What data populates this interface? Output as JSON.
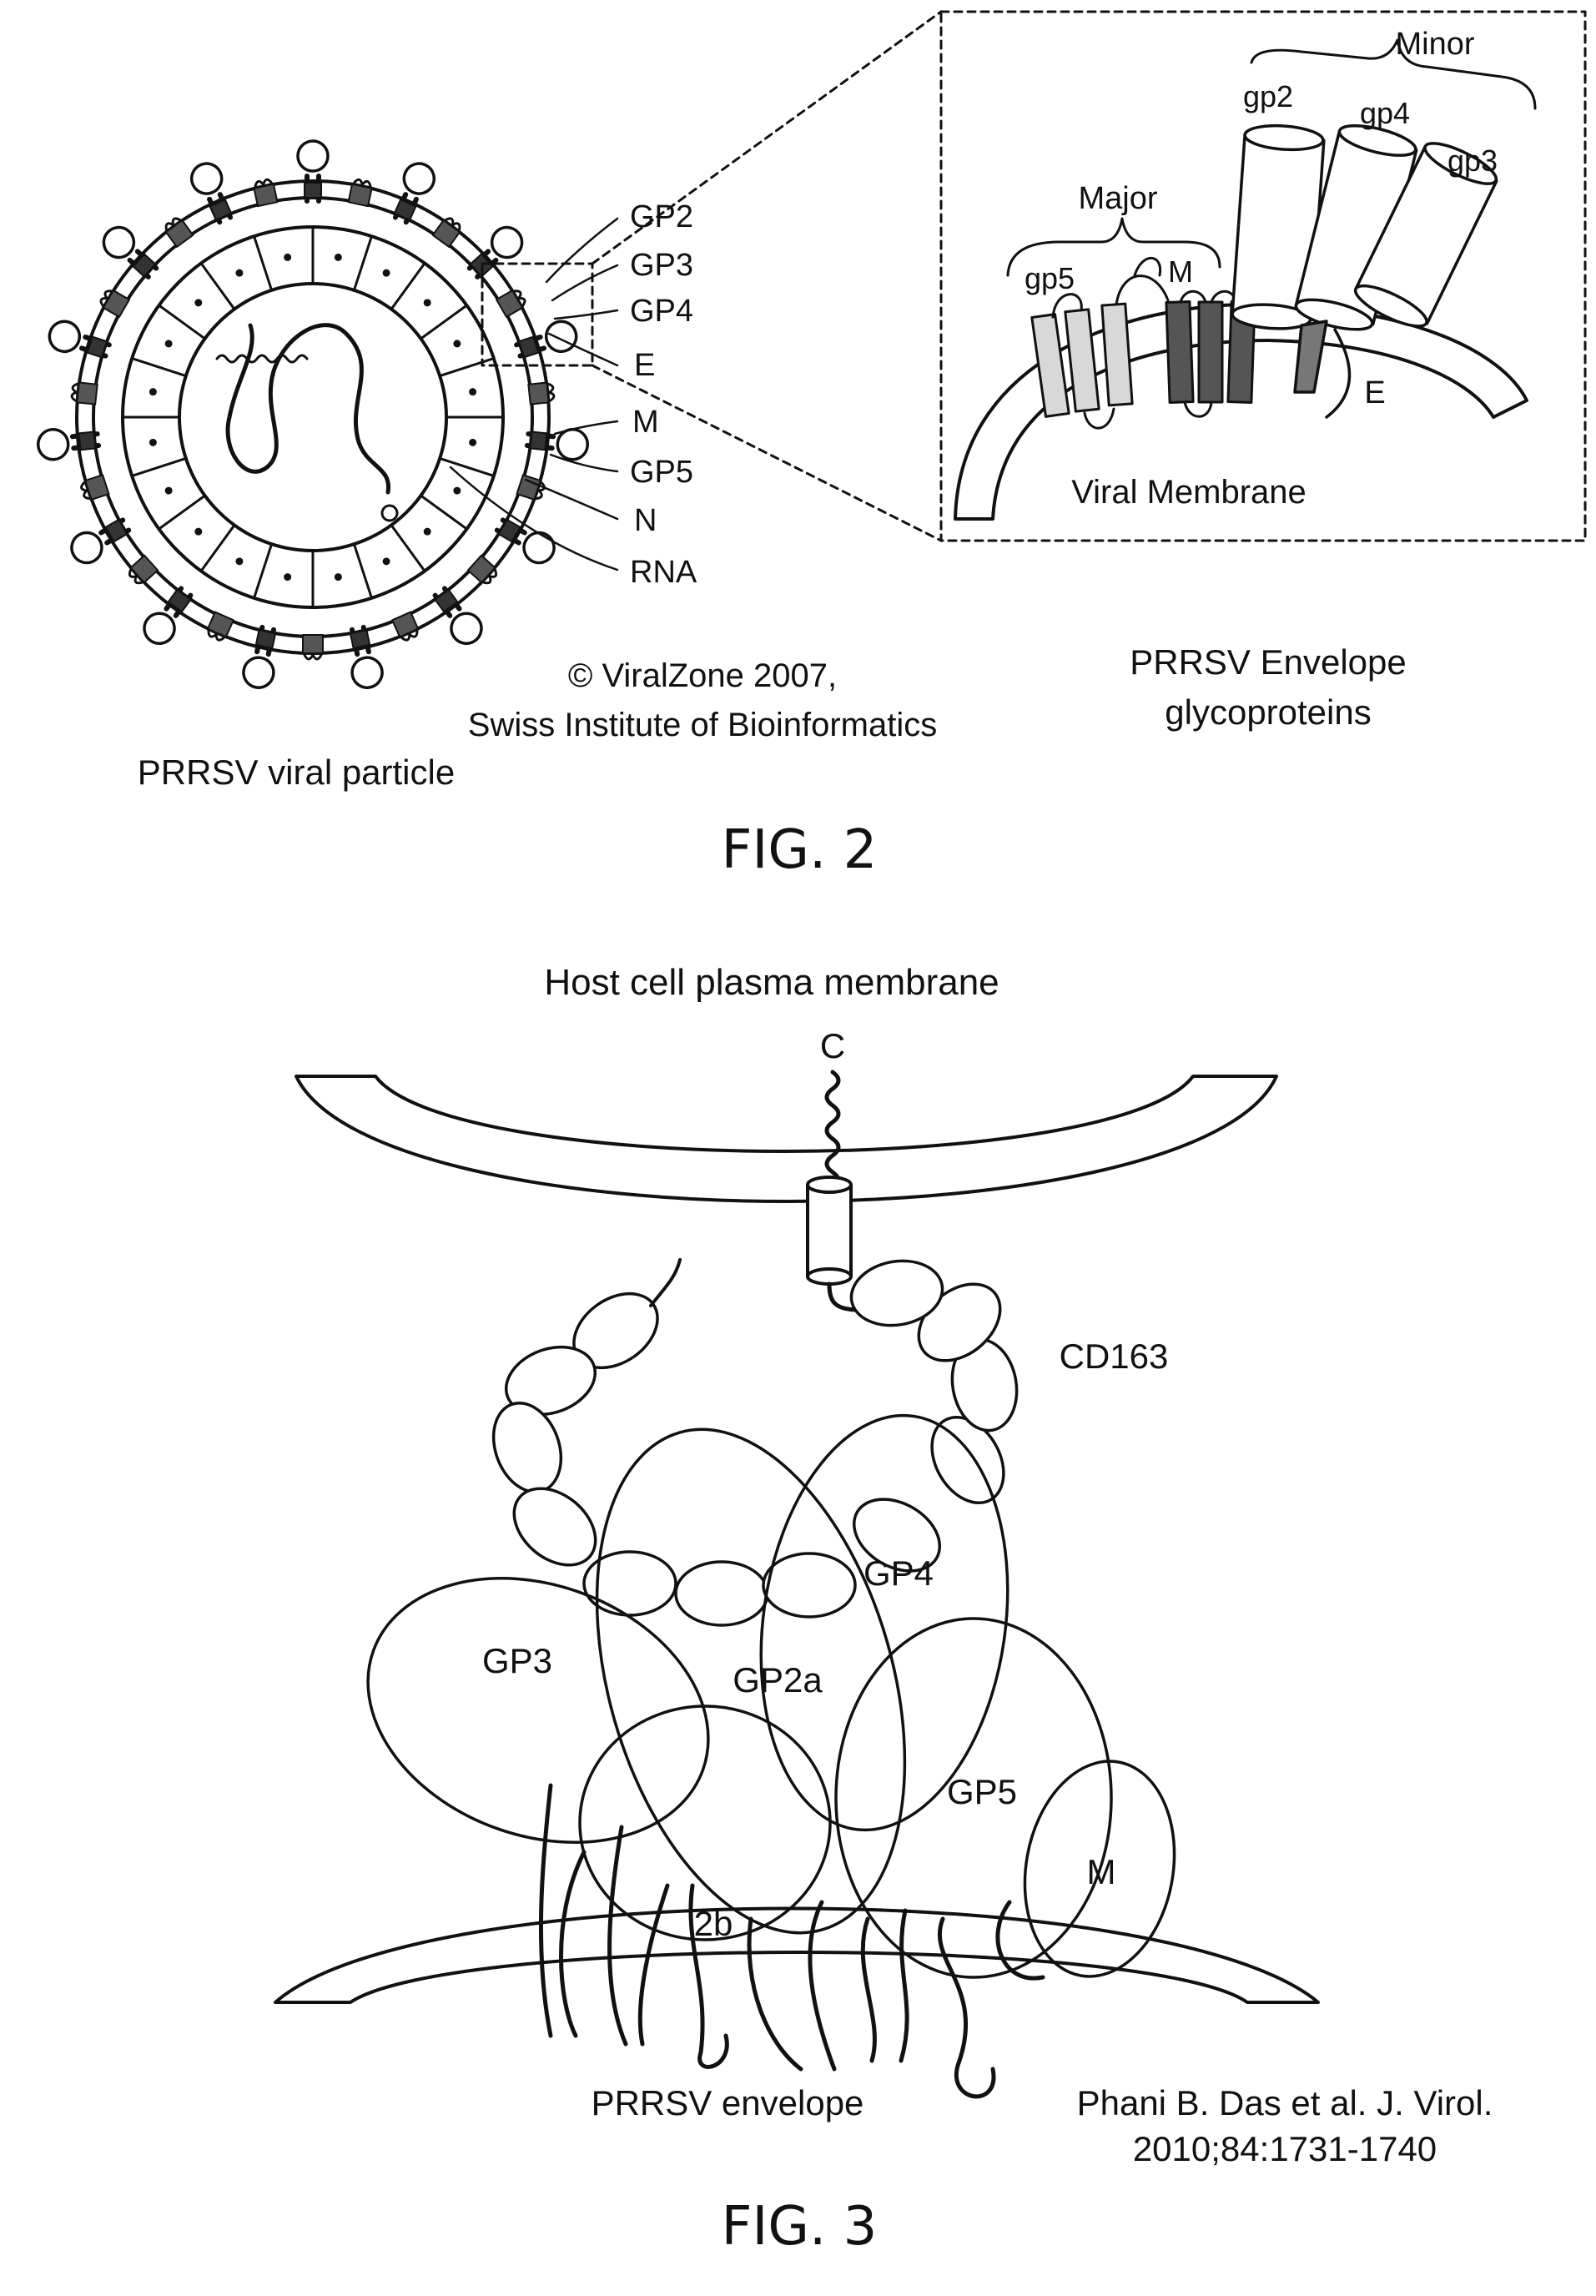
{
  "fig2": {
    "caption": "FIG. 2",
    "particle_caption": "PRRSV viral particle",
    "copyright_line1": "© ViralZone 2007,",
    "copyright_line2": "Swiss Institute of Bioinformatics",
    "callouts": [
      "GP2",
      "GP3",
      "GP4",
      "E",
      "M",
      "GP5",
      "N",
      "RNA"
    ],
    "inset": {
      "minor_label": "Minor",
      "major_label": "Major",
      "gp2": "gp2",
      "gp4": "gp4",
      "gp3": "gp3",
      "gp5": "gp5",
      "m": "M",
      "e": "E",
      "membrane_label": "Viral Membrane",
      "caption_line1": "PRRSV Envelope",
      "caption_line2": "glycoproteins"
    }
  },
  "fig3": {
    "caption": "FIG. 3",
    "host_label": "Host cell plasma membrane",
    "c_label": "C",
    "cd163_label": "CD163",
    "gp3": "GP3",
    "gp2a": "GP2a",
    "gp4": "GP4",
    "gp5": "GP5",
    "m": "M",
    "b2": "2b",
    "envelope_label": "PRRSV envelope",
    "citation_line1": "Phani B. Das et al. J. Virol.",
    "citation_line2": "2010;84:1731-1740"
  }
}
